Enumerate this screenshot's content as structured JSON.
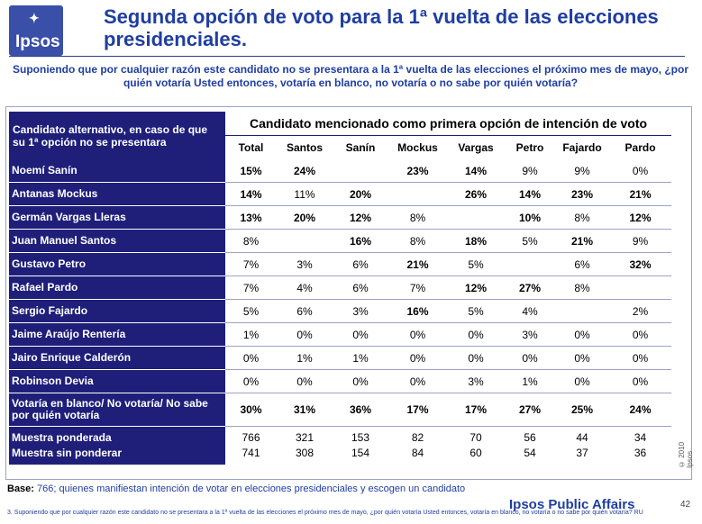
{
  "logo": {
    "text": "Ipsos"
  },
  "title": "Segunda opción de voto para la 1ª vuelta de las elecciones presidenciales.",
  "question": "Suponiendo que por cualquier razón este candidato no se presentara a la 1ª vuelta de las elecciones el próximo mes de mayo, ¿por quién votaría Usted entonces, votaría en blanco, no votaría o no sabe por quién votaría?",
  "table": {
    "left_header": "Candidato alternativo, en caso de que su 1ª opción no se presentara",
    "top_header": "Candidato mencionado como primera opción de intención de voto",
    "columns": [
      "Total",
      "Santos",
      "Sanín",
      "Mockus",
      "Vargas",
      "Petro",
      "Fajardo",
      "Pardo"
    ],
    "rows": [
      {
        "label": "Noemí Sanín",
        "values": [
          "15%",
          "24%",
          "",
          "23%",
          "14%",
          "9%",
          "9%",
          "0%"
        ],
        "bold": [
          1,
          1,
          0,
          1,
          1,
          0,
          0,
          0
        ]
      },
      {
        "label": "Antanas Mockus",
        "values": [
          "14%",
          "11%",
          "20%",
          "",
          "26%",
          "14%",
          "23%",
          "21%"
        ],
        "bold": [
          1,
          0,
          1,
          0,
          1,
          1,
          1,
          1
        ]
      },
      {
        "label": "Germán Vargas Lleras",
        "values": [
          "13%",
          "20%",
          "12%",
          "8%",
          "",
          "10%",
          "8%",
          "12%"
        ],
        "bold": [
          1,
          1,
          1,
          0,
          0,
          1,
          0,
          1
        ]
      },
      {
        "label": "Juan Manuel Santos",
        "values": [
          "8%",
          "",
          "16%",
          "8%",
          "18%",
          "5%",
          "21%",
          "9%"
        ],
        "bold": [
          0,
          0,
          1,
          0,
          1,
          0,
          1,
          0
        ]
      },
      {
        "label": "Gustavo Petro",
        "values": [
          "7%",
          "3%",
          "6%",
          "21%",
          "5%",
          "",
          "6%",
          "32%"
        ],
        "bold": [
          0,
          0,
          0,
          1,
          0,
          0,
          0,
          1
        ]
      },
      {
        "label": "Rafael Pardo",
        "values": [
          "7%",
          "4%",
          "6%",
          "7%",
          "12%",
          "27%",
          "8%",
          ""
        ],
        "bold": [
          0,
          0,
          0,
          0,
          1,
          1,
          0,
          0
        ]
      },
      {
        "label": "Sergio Fajardo",
        "values": [
          "5%",
          "6%",
          "3%",
          "16%",
          "5%",
          "4%",
          "",
          "2%"
        ],
        "bold": [
          0,
          0,
          0,
          1,
          0,
          0,
          0,
          0
        ]
      },
      {
        "label": "Jaime Araújo Rentería",
        "values": [
          "1%",
          "0%",
          "0%",
          "0%",
          "0%",
          "3%",
          "0%",
          "0%"
        ],
        "bold": [
          0,
          0,
          0,
          0,
          0,
          0,
          0,
          0
        ]
      },
      {
        "label": "Jairo Enrique Calderón",
        "values": [
          "0%",
          "1%",
          "1%",
          "0%",
          "0%",
          "0%",
          "0%",
          "0%"
        ],
        "bold": [
          0,
          0,
          0,
          0,
          0,
          0,
          0,
          0
        ]
      },
      {
        "label": "Robinson Devia",
        "values": [
          "0%",
          "0%",
          "0%",
          "0%",
          "3%",
          "1%",
          "0%",
          "0%"
        ],
        "bold": [
          0,
          0,
          0,
          0,
          0,
          0,
          0,
          0
        ]
      },
      {
        "label": "Votaría en blanco/ No votaría/ No sabe por quién votaría",
        "values": [
          "30%",
          "31%",
          "36%",
          "17%",
          "17%",
          "27%",
          "25%",
          "24%"
        ],
        "bold": [
          1,
          1,
          1,
          1,
          1,
          1,
          1,
          1
        ]
      }
    ],
    "sample": {
      "labels": [
        "Muestra ponderada",
        "Muestra sin ponderar"
      ],
      "weighted": [
        "766",
        "321",
        "153",
        "82",
        "70",
        "56",
        "44",
        "34"
      ],
      "unweighted": [
        "741",
        "308",
        "154",
        "84",
        "60",
        "54",
        "37",
        "36"
      ]
    }
  },
  "copyright": "© 2010 Ipsos",
  "base_label": "Base:",
  "base_text": " 766; quienes manifiestan intención de votar en elecciones presidenciales y escogen un candidato",
  "brand": "Ipsos Public Affairs",
  "page_number": "42",
  "footnote": "3. Suponiendo que por cualquier razón este candidato no se presentara a la 1ª vuelta de las elecciones el próximo mes de mayo, ¿por quién votaría Usted entonces, votaría en blanco, no votaría o no sabe por quién votaría?  RU"
}
